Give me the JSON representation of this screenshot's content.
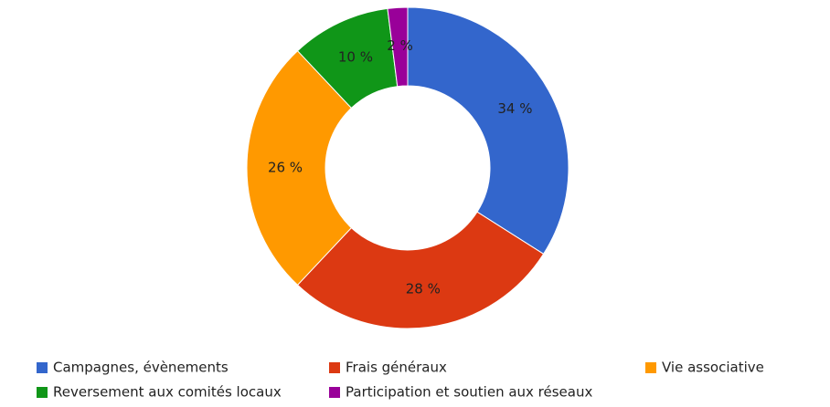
{
  "chart_data": {
    "type": "donut",
    "categories": [
      "Campagnes, évènements",
      "Frais généraux",
      "Vie associative",
      "Reversement aux comités locaux",
      "Participation et soutien aux réseaux"
    ],
    "values": [
      34,
      28,
      26,
      10,
      2
    ],
    "value_labels": [
      "34 %",
      "28 %",
      "26 %",
      "10 %",
      "2 %"
    ],
    "colors": [
      "#3366cc",
      "#dc3912",
      "#ff9900",
      "#109618",
      "#990099"
    ],
    "legend": "bottom"
  }
}
